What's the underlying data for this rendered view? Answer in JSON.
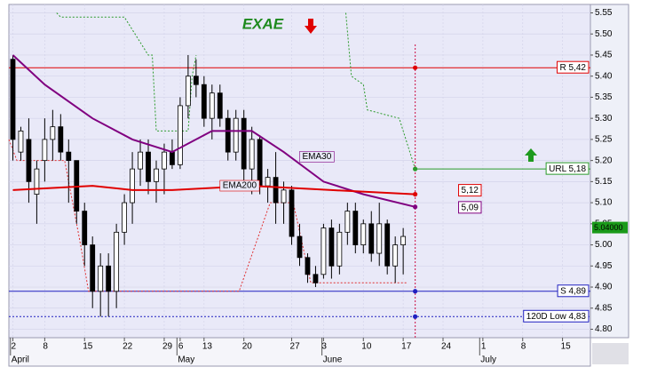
{
  "chart_data": {
    "type": "candlestick",
    "title": "EXAE",
    "xlim": [
      -0.5,
      72.5
    ],
    "ylim": [
      4.78,
      5.57
    ],
    "grid": true,
    "xticks": [
      {
        "value": 0,
        "label": "2"
      },
      {
        "value": 4,
        "label": "8"
      },
      {
        "value": 9,
        "label": "15"
      },
      {
        "value": 14,
        "label": "22"
      },
      {
        "value": 19,
        "label": "29"
      },
      {
        "value": 21,
        "label": "6"
      },
      {
        "value": 24,
        "label": "13"
      },
      {
        "value": 29,
        "label": "20"
      },
      {
        "value": 35,
        "label": "27"
      },
      {
        "value": 39,
        "label": "3"
      },
      {
        "value": 44,
        "label": "10"
      },
      {
        "value": 49,
        "label": "17"
      },
      {
        "value": 54,
        "label": "24"
      },
      {
        "value": 59,
        "label": "1"
      },
      {
        "value": 64,
        "label": "8"
      },
      {
        "value": 69,
        "label": "15"
      }
    ],
    "month_ticks": [
      {
        "value": -0.3,
        "label": "April"
      },
      {
        "value": 20.6,
        "label": "May"
      },
      {
        "value": 38.8,
        "label": "June"
      },
      {
        "value": 58.6,
        "label": "July"
      }
    ],
    "yticks": [
      {
        "value": 4.8,
        "label": "4.80"
      },
      4.85,
      {
        "value": 4.9,
        "label": "4.90"
      },
      4.95,
      {
        "value": 5.0,
        "label": "5.00"
      },
      5.05,
      {
        "value": 5.1,
        "label": "5.10"
      },
      5.15,
      {
        "value": 5.2,
        "label": "5.20"
      },
      5.25,
      {
        "value": 5.3,
        "label": "5.30"
      },
      5.35,
      {
        "value": 5.4,
        "label": "5.40"
      },
      5.45,
      {
        "value": 5.5,
        "label": "5.50"
      },
      5.55
    ],
    "candles": {
      "x": [
        0,
        1,
        2,
        3,
        4,
        5,
        6,
        7,
        8,
        9,
        10,
        11,
        12,
        13,
        14,
        15,
        16,
        17,
        18,
        19,
        20,
        21,
        22,
        23,
        24,
        25,
        26,
        27,
        28,
        29,
        30,
        31,
        32,
        33,
        34,
        35,
        36,
        37,
        38,
        39,
        40,
        41,
        42,
        43,
        44,
        45,
        46,
        47,
        48,
        49
      ],
      "open": [
        5.44,
        5.22,
        5.25,
        5.12,
        5.2,
        5.25,
        5.28,
        5.22,
        5.2,
        5.08,
        5.0,
        4.89,
        4.95,
        4.89,
        5.03,
        5.1,
        5.18,
        5.22,
        5.15,
        5.18,
        5.22,
        5.19,
        5.33,
        5.4,
        5.38,
        5.3,
        5.36,
        5.3,
        5.22,
        5.3,
        5.18,
        5.25,
        5.14,
        5.16,
        5.1,
        5.13,
        5.02,
        4.97,
        4.93,
        4.93,
        5.04,
        4.95,
        5.03,
        5.08,
        5.0,
        5.05,
        4.98,
        5.05,
        4.95,
        5.0
      ],
      "high": [
        5.45,
        5.28,
        5.3,
        5.2,
        5.3,
        5.32,
        5.31,
        5.25,
        5.2,
        5.1,
        5.02,
        4.98,
        4.98,
        5.05,
        5.12,
        5.22,
        5.25,
        5.25,
        5.2,
        5.24,
        5.25,
        5.35,
        5.45,
        5.44,
        5.4,
        5.38,
        5.38,
        5.32,
        5.32,
        5.32,
        5.28,
        5.26,
        5.18,
        5.22,
        5.15,
        5.14,
        5.05,
        4.98,
        4.95,
        5.05,
        5.06,
        5.05,
        5.1,
        5.1,
        5.06,
        5.08,
        5.1,
        5.06,
        5.02,
        5.04
      ],
      "low": [
        5.2,
        5.2,
        5.1,
        5.05,
        5.15,
        5.2,
        5.2,
        5.1,
        5.05,
        4.95,
        4.85,
        4.83,
        4.83,
        4.85,
        5.0,
        5.05,
        5.14,
        5.12,
        5.1,
        5.12,
        5.18,
        5.18,
        5.3,
        5.35,
        5.28,
        5.25,
        5.28,
        5.2,
        5.2,
        5.15,
        5.12,
        5.12,
        5.1,
        5.05,
        5.05,
        5.0,
        4.95,
        4.91,
        4.9,
        4.92,
        4.92,
        4.93,
        5.0,
        4.98,
        4.98,
        4.96,
        4.95,
        4.93,
        4.91,
        4.93
      ],
      "close": [
        5.25,
        5.27,
        5.15,
        5.18,
        5.25,
        5.28,
        5.22,
        5.2,
        5.08,
        5.0,
        4.89,
        4.95,
        4.89,
        5.03,
        5.1,
        5.18,
        5.22,
        5.15,
        5.18,
        5.22,
        5.19,
        5.33,
        5.4,
        5.38,
        5.3,
        5.36,
        5.3,
        5.22,
        5.3,
        5.18,
        5.25,
        5.14,
        5.16,
        5.1,
        5.13,
        5.02,
        4.97,
        4.93,
        4.91,
        5.04,
        4.95,
        5.03,
        5.08,
        5.0,
        5.05,
        4.98,
        5.05,
        4.95,
        5.0,
        5.02
      ]
    },
    "series": [
      {
        "name": "EMA30",
        "color": "#800080",
        "x": [
          0,
          4,
          10,
          15,
          20,
          25,
          30,
          34,
          39,
          44,
          50.5
        ],
        "values": [
          5.45,
          5.38,
          5.3,
          5.25,
          5.22,
          5.27,
          5.27,
          5.22,
          5.15,
          5.12,
          5.09
        ],
        "end_label": "5,09"
      },
      {
        "name": "EMA200",
        "color": "#e00000",
        "x": [
          0,
          10,
          15,
          20,
          30,
          40,
          50.5
        ],
        "values": [
          5.13,
          5.14,
          5.13,
          5.13,
          5.14,
          5.13,
          5.12
        ],
        "end_label": "5,12"
      }
    ],
    "stops": [
      {
        "color": "#2a9a2a",
        "x": [
          5.5,
          6,
          14,
          17,
          17.5,
          18,
          22,
          22.5,
          23,
          null,
          41.8,
          42.5,
          44,
          44.5,
          48.5,
          50.5
        ],
        "values": [
          5.55,
          5.54,
          5.54,
          5.45,
          5.45,
          5.27,
          5.27,
          5.4,
          5.45,
          null,
          5.55,
          5.4,
          5.38,
          5.32,
          5.3,
          5.18
        ]
      },
      {
        "color": "#e03030",
        "x": [
          -0.5,
          0.5,
          6.5,
          8.5,
          9.5,
          28.4,
          32.3,
          35.2,
          37.4,
          49.5
        ],
        "values": [
          5.25,
          5.2,
          5.2,
          5.0,
          4.89,
          4.89,
          5.1,
          5.1,
          4.91,
          4.91
        ]
      }
    ],
    "marker_x": 50.5,
    "levels": [
      {
        "label": "R 5,42",
        "value": 5.42,
        "color": "#e00000",
        "style": "solid",
        "span": "full"
      },
      {
        "label": "URL 5,18",
        "value": 5.18,
        "color": "#2a9a2a",
        "style": "solid",
        "span": "marker"
      },
      {
        "label": "S 4,89",
        "value": 4.89,
        "color": "#2020c0",
        "style": "solid",
        "span": "full"
      },
      {
        "label": "120D Low 4,83",
        "value": 4.83,
        "color": "#2020c0",
        "style": "dotted",
        "span": "full"
      }
    ],
    "last_price": {
      "value": 5.04,
      "label": "5.04000",
      "color": "#1a9a1a"
    }
  }
}
